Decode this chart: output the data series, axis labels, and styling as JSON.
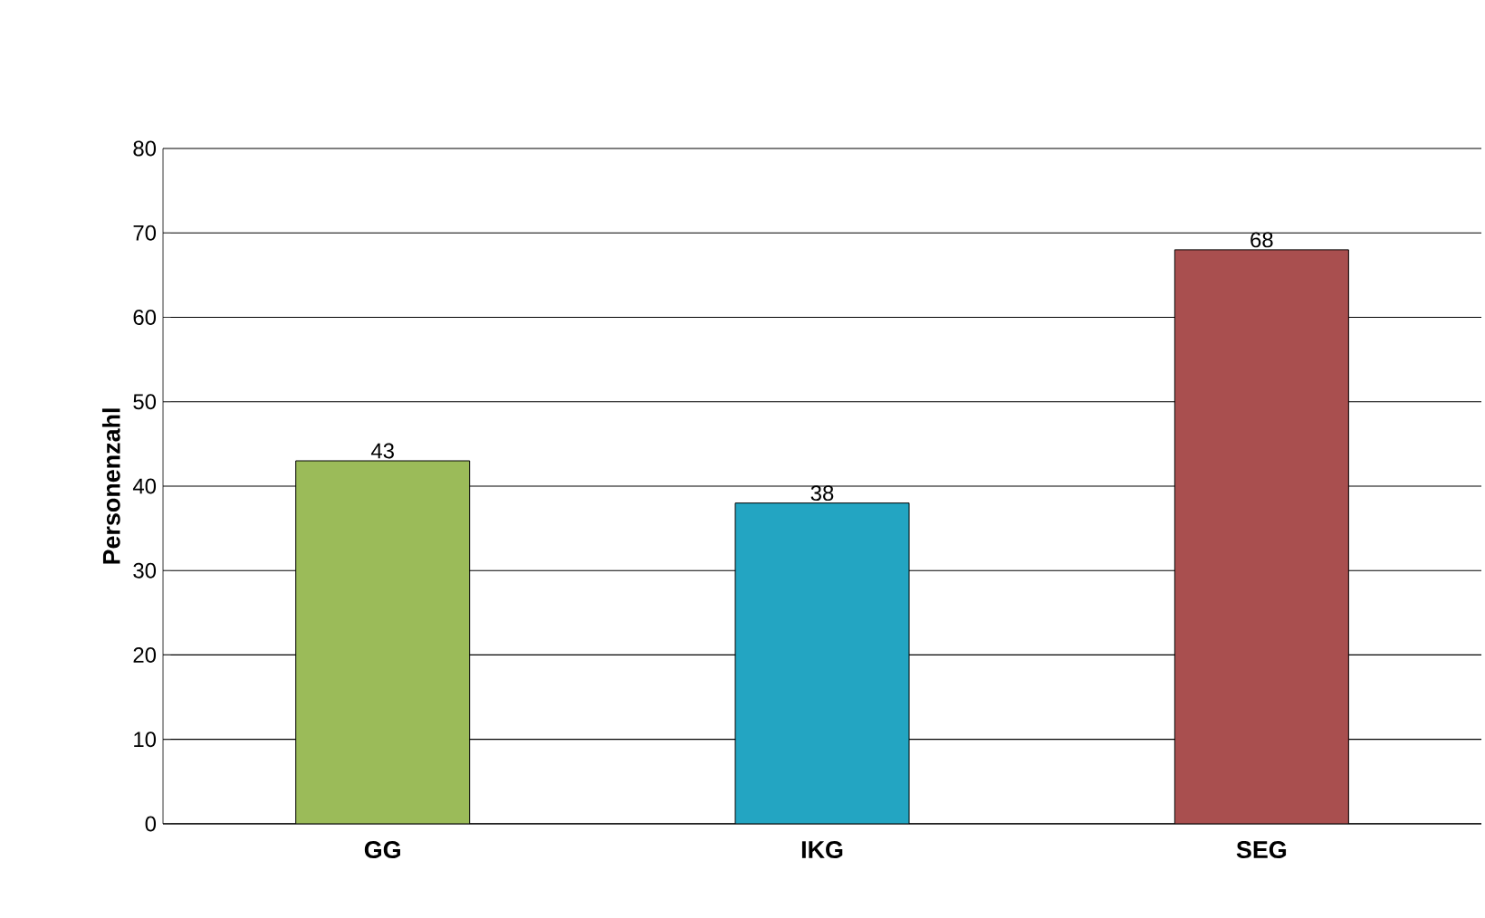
{
  "chart_data": {
    "type": "bar",
    "ylabel": "Personenzahl",
    "categories": [
      "GG",
      "IKG",
      "SEG"
    ],
    "values": [
      43,
      38,
      68
    ],
    "colors": [
      "#9bbb59",
      "#23a5c2",
      "#a94f4f"
    ],
    "ylim": [
      0,
      80
    ],
    "yticks": [
      0,
      10,
      20,
      30,
      40,
      50,
      60,
      70,
      80
    ],
    "grid": "y",
    "data_labels": true
  }
}
